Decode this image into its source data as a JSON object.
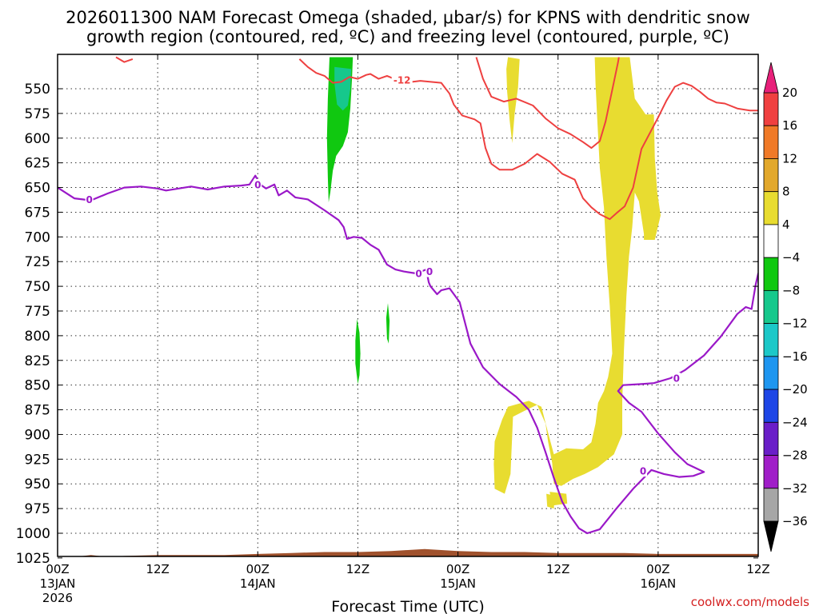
{
  "chart_data": {
    "type": "contour-timeheight",
    "title_line1": "2026011300 NAM Forecast Omega (shaded, μbar/s) for KPNS with dendritic snow",
    "title_line2": "growth region (contoured, red, ºC) and freezing level (contoured, purple, ºC)",
    "xlabel": "Forecast Time (UTC)",
    "credit": "coolwx.com/models",
    "x_range_hours": [
      0,
      84
    ],
    "y_range_hpa": [
      520,
      1035
    ],
    "x_ticks": [
      {
        "hour": 0,
        "line1": "00Z",
        "line2": "13JAN",
        "line3": "2026"
      },
      {
        "hour": 12,
        "line1": "12Z",
        "line2": "",
        "line3": ""
      },
      {
        "hour": 24,
        "line1": "00Z",
        "line2": "14JAN",
        "line3": ""
      },
      {
        "hour": 36,
        "line1": "12Z",
        "line2": "",
        "line3": ""
      },
      {
        "hour": 48,
        "line1": "00Z",
        "line2": "15JAN",
        "line3": ""
      },
      {
        "hour": 60,
        "line1": "12Z",
        "line2": "",
        "line3": ""
      },
      {
        "hour": 72,
        "line1": "00Z",
        "line2": "16JAN",
        "line3": ""
      },
      {
        "hour": 84,
        "line1": "12Z",
        "line2": "",
        "line3": ""
      }
    ],
    "y_ticks": [
      550,
      575,
      600,
      625,
      650,
      675,
      700,
      725,
      750,
      775,
      800,
      825,
      850,
      875,
      900,
      925,
      950,
      975,
      1000,
      1025
    ],
    "colorbar": {
      "labels": [
        "20",
        "16",
        "12",
        "8",
        "4",
        "−4",
        "−8",
        "−12",
        "−16",
        "−20",
        "−24",
        "−28",
        "−32",
        "−36"
      ],
      "bins": [
        {
          "from": 16,
          "to": 20,
          "color": "#f04040"
        },
        {
          "from": 12,
          "to": 16,
          "color": "#f07a28"
        },
        {
          "from": 8,
          "to": 12,
          "color": "#e2a82c"
        },
        {
          "from": 4,
          "to": 8,
          "color": "#e8dc30"
        },
        {
          "from": -4,
          "to": 4,
          "color": "#ffffff"
        },
        {
          "from": -8,
          "to": -4,
          "color": "#10c810"
        },
        {
          "from": -12,
          "to": -8,
          "color": "#16c88c"
        },
        {
          "from": -16,
          "to": -12,
          "color": "#1cc8c8"
        },
        {
          "from": -20,
          "to": -16,
          "color": "#1e96f0"
        },
        {
          "from": -24,
          "to": -20,
          "color": "#1e46e6"
        },
        {
          "from": -28,
          "to": -24,
          "color": "#6a1ec8"
        },
        {
          "from": -32,
          "to": -28,
          "color": "#a01ec8"
        },
        {
          "from": -36,
          "to": -32,
          "color": "#a6a6a6"
        }
      ],
      "top_arrow_color": "#e8207a",
      "bottom_arrow_color": "#000000"
    },
    "freezing_level": {
      "label": "0",
      "color": "#9a18c8",
      "points": [
        [
          0,
          650
        ],
        [
          2,
          661
        ],
        [
          4,
          663
        ],
        [
          6,
          656
        ],
        [
          8,
          650
        ],
        [
          10,
          649
        ],
        [
          12,
          651
        ],
        [
          13,
          653
        ],
        [
          16,
          649
        ],
        [
          18,
          652
        ],
        [
          20,
          649
        ],
        [
          22,
          648
        ],
        [
          23,
          647
        ],
        [
          23.7,
          638
        ],
        [
          24.3,
          647
        ],
        [
          25,
          651
        ],
        [
          26,
          647
        ],
        [
          26.5,
          658
        ],
        [
          27.5,
          653
        ],
        [
          28.5,
          660
        ],
        [
          30,
          662
        ],
        [
          32,
          673
        ],
        [
          33.7,
          683
        ],
        [
          34.3,
          690
        ],
        [
          34.7,
          702
        ],
        [
          35.5,
          700
        ],
        [
          36.5,
          701
        ],
        [
          37.5,
          708
        ],
        [
          38.5,
          713
        ],
        [
          39.5,
          728
        ],
        [
          40.5,
          733
        ],
        [
          41.5,
          735
        ],
        [
          43,
          737
        ],
        [
          44.2,
          733
        ],
        [
          44.5,
          746
        ],
        [
          44.7,
          750
        ],
        [
          45.5,
          758
        ],
        [
          46,
          754
        ],
        [
          47,
          752
        ],
        [
          48.2,
          766
        ],
        [
          49.5,
          808
        ],
        [
          51,
          832
        ],
        [
          53,
          849
        ],
        [
          55,
          862
        ],
        [
          56.5,
          875
        ],
        [
          57.5,
          893
        ],
        [
          58.5,
          918
        ],
        [
          59.5,
          944
        ],
        [
          60.5,
          968
        ],
        [
          61.5,
          983
        ],
        [
          62.5,
          995
        ],
        [
          63.5,
          1000
        ],
        [
          65,
          996
        ],
        [
          67,
          975
        ],
        [
          69,
          955
        ],
        [
          71.2,
          936
        ],
        [
          72.7,
          940
        ],
        [
          74.5,
          943
        ],
        [
          76.2,
          942
        ],
        [
          77.5,
          938
        ],
        [
          75.5,
          930
        ],
        [
          74,
          918
        ],
        [
          72,
          899
        ],
        [
          70,
          877
        ],
        [
          68.5,
          868
        ],
        [
          67.2,
          856
        ],
        [
          67.8,
          850
        ],
        [
          70,
          849
        ],
        [
          71.5,
          848
        ],
        [
          73.5,
          843
        ],
        [
          75.2,
          835
        ],
        [
          77.5,
          820
        ],
        [
          79.5,
          801
        ],
        [
          81.5,
          778
        ],
        [
          82.5,
          771
        ],
        [
          83.2,
          773
        ],
        [
          83.7,
          748
        ],
        [
          84,
          737
        ],
        [
          84.5,
          735
        ]
      ]
    },
    "freezing_level_labels": [
      {
        "hour": 3.8,
        "p": 662
      },
      {
        "hour": 24.0,
        "p": 647
      },
      {
        "hour": 43.3,
        "p": 737
      },
      {
        "hour": 44.6,
        "p": 735
      },
      {
        "hour": 74.2,
        "p": 843
      },
      {
        "hour": 70.2,
        "p": 937
      }
    ],
    "dendritic_contour_color": "#ee4040",
    "dendritic_label": "-12",
    "dendritic_contours": [
      {
        "points": [
          [
            7,
            518
          ],
          [
            8,
            523
          ],
          [
            9,
            520
          ]
        ]
      },
      {
        "points": [
          [
            29,
            520
          ],
          [
            30,
            528
          ],
          [
            31,
            534
          ],
          [
            32,
            537
          ],
          [
            33,
            544
          ],
          [
            34,
            543
          ],
          [
            35,
            538
          ],
          [
            36,
            540
          ],
          [
            37,
            536
          ],
          [
            37.5,
            535
          ],
          [
            38.5,
            540
          ],
          [
            39.5,
            537
          ],
          [
            41.5,
            544
          ],
          [
            43.5,
            542
          ],
          [
            46,
            544
          ],
          [
            47,
            555
          ],
          [
            47.5,
            566
          ],
          [
            48.5,
            577
          ],
          [
            50,
            581
          ],
          [
            50.7,
            585
          ],
          [
            51.3,
            610
          ],
          [
            52,
            626
          ],
          [
            53,
            632
          ],
          [
            54.5,
            632
          ],
          [
            56,
            626
          ],
          [
            57.5,
            616
          ],
          [
            59,
            624
          ],
          [
            60.5,
            636
          ],
          [
            62,
            642
          ],
          [
            63,
            661
          ],
          [
            64,
            670
          ],
          [
            65,
            677
          ],
          [
            66.2,
            682
          ],
          [
            67,
            676
          ],
          [
            68,
            669
          ],
          [
            69,
            650
          ],
          [
            70,
            611
          ],
          [
            72,
            579
          ],
          [
            73,
            562
          ],
          [
            74,
            548
          ],
          [
            75,
            544
          ],
          [
            76,
            547
          ],
          [
            77,
            553
          ],
          [
            78,
            560
          ],
          [
            79,
            564
          ],
          [
            80,
            565
          ],
          [
            81.5,
            570
          ],
          [
            83,
            572
          ],
          [
            84,
            572
          ]
        ]
      },
      {
        "points": [
          [
            50.2,
            518
          ],
          [
            51,
            540
          ],
          [
            52,
            558
          ],
          [
            53.5,
            563
          ],
          [
            55,
            560
          ],
          [
            57,
            567
          ],
          [
            58.5,
            580
          ],
          [
            60,
            590
          ],
          [
            61.5,
            596
          ],
          [
            63,
            604
          ],
          [
            64,
            610
          ],
          [
            65,
            603
          ],
          [
            65.7,
            583
          ],
          [
            66.2,
            563
          ],
          [
            66.7,
            543
          ],
          [
            67.2,
            523
          ],
          [
            67.3,
            518
          ]
        ]
      }
    ],
    "dendritic_label_pos": {
      "hour": 41.3,
      "p": 541
    },
    "omega_regions": [
      {
        "value": "-6",
        "color": "#10c810",
        "points": [
          [
            32.6,
            518
          ],
          [
            35.4,
            518
          ],
          [
            35.3,
            540
          ],
          [
            35.1,
            570
          ],
          [
            34.8,
            594
          ],
          [
            34.2,
            608
          ],
          [
            33.4,
            618
          ],
          [
            33,
            633
          ],
          [
            32.7,
            655
          ],
          [
            32.5,
            665
          ],
          [
            32.4,
            640
          ],
          [
            32.3,
            600
          ],
          [
            32.4,
            560
          ]
        ]
      },
      {
        "value": "-10",
        "color": "#16c88c",
        "points": [
          [
            33.2,
            528
          ],
          [
            35.2,
            530
          ],
          [
            35.1,
            550
          ],
          [
            34.8,
            567
          ],
          [
            34.2,
            572
          ],
          [
            33.5,
            566
          ],
          [
            33.2,
            545
          ]
        ]
      },
      {
        "value": "-6",
        "color": "#10c810",
        "points": [
          [
            35.9,
            783
          ],
          [
            36.2,
            797
          ],
          [
            36.3,
            818
          ],
          [
            36.2,
            840
          ],
          [
            36,
            849
          ],
          [
            35.7,
            828
          ],
          [
            35.7,
            805
          ]
        ]
      },
      {
        "value": "-6",
        "color": "#10c810",
        "points": [
          [
            39.6,
            767
          ],
          [
            39.8,
            785
          ],
          [
            39.7,
            808
          ],
          [
            39.5,
            803
          ],
          [
            39.4,
            782
          ]
        ]
      },
      {
        "value": "6",
        "color": "#e8dc30",
        "points": [
          [
            54,
            518
          ],
          [
            55.4,
            520
          ],
          [
            55.2,
            549
          ],
          [
            54.8,
            575
          ],
          [
            54.5,
            605
          ],
          [
            54.2,
            582
          ],
          [
            53.9,
            553
          ],
          [
            53.8,
            530
          ]
        ]
      },
      {
        "value": "6",
        "color": "#e8dc30",
        "points": [
          [
            64.4,
            518
          ],
          [
            68.6,
            518
          ],
          [
            69.2,
            560
          ],
          [
            70.5,
            576
          ],
          [
            71.5,
            576
          ],
          [
            71.6,
            620
          ],
          [
            71.9,
            655
          ],
          [
            72.3,
            678
          ],
          [
            71.6,
            703
          ],
          [
            70.3,
            703
          ],
          [
            70.3,
            697
          ],
          [
            69.7,
            664
          ],
          [
            69.2,
            655
          ],
          [
            68.9,
            690
          ],
          [
            68.5,
            720
          ],
          [
            68.2,
            760
          ],
          [
            67.9,
            815
          ],
          [
            67.7,
            866
          ],
          [
            67.7,
            900
          ],
          [
            66.7,
            920
          ],
          [
            64.8,
            933
          ],
          [
            63.2,
            940
          ],
          [
            61.8,
            945
          ],
          [
            60.4,
            952
          ],
          [
            59.5,
            950
          ],
          [
            59.3,
            929
          ],
          [
            58.8,
            907
          ],
          [
            58.5,
            889
          ],
          [
            57.5,
            870
          ],
          [
            56,
            876
          ],
          [
            54.6,
            882
          ],
          [
            54.3,
            940
          ],
          [
            53.6,
            960
          ],
          [
            52.4,
            955
          ],
          [
            52.3,
            930
          ],
          [
            52.4,
            907
          ],
          [
            53.3,
            885
          ],
          [
            54,
            872
          ],
          [
            56.5,
            866
          ],
          [
            58,
            872
          ],
          [
            58.8,
            898
          ],
          [
            59.5,
            920
          ],
          [
            61,
            914
          ],
          [
            63,
            915
          ],
          [
            64,
            908
          ],
          [
            64.5,
            889
          ],
          [
            64.8,
            868
          ],
          [
            65.5,
            856
          ],
          [
            66,
            842
          ],
          [
            66.5,
            818
          ],
          [
            66.2,
            770
          ],
          [
            65.8,
            720
          ],
          [
            65.5,
            670
          ],
          [
            65,
            630
          ],
          [
            64.7,
            580
          ],
          [
            64.5,
            545
          ]
        ]
      },
      {
        "value": "6",
        "color": "#e8dc30",
        "points": [
          [
            59,
            958
          ],
          [
            61,
            960
          ],
          [
            61.1,
            970
          ],
          [
            59.3,
            972
          ]
        ]
      },
      {
        "value": "6",
        "color": "#e8dc30",
        "points": [
          [
            58.6,
            960
          ],
          [
            59.6,
            962
          ],
          [
            59.5,
            975
          ],
          [
            58.7,
            973
          ]
        ]
      }
    ],
    "ground_color": "#a0522d",
    "ground_top": [
      [
        0,
        1023
      ],
      [
        2,
        1024
      ],
      [
        4,
        1022
      ],
      [
        6,
        1024
      ],
      [
        8,
        1023
      ],
      [
        12,
        1022
      ],
      [
        16,
        1022
      ],
      [
        20,
        1022
      ],
      [
        24,
        1021
      ],
      [
        28,
        1020
      ],
      [
        32,
        1019
      ],
      [
        36,
        1019
      ],
      [
        40,
        1018
      ],
      [
        42,
        1017
      ],
      [
        44,
        1016
      ],
      [
        46,
        1017
      ],
      [
        48,
        1018
      ],
      [
        52,
        1019
      ],
      [
        56,
        1019
      ],
      [
        60,
        1020
      ],
      [
        64,
        1020
      ],
      [
        68,
        1020
      ],
      [
        72,
        1021
      ],
      [
        76,
        1021
      ],
      [
        80,
        1021
      ],
      [
        84,
        1021
      ]
    ]
  }
}
